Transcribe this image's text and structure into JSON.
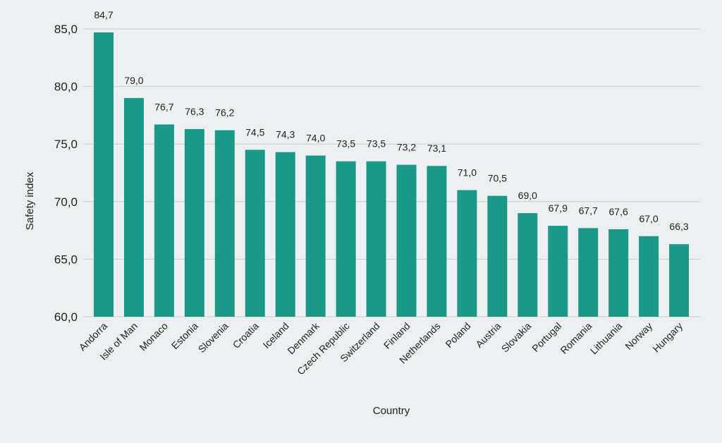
{
  "chart_data": {
    "type": "bar",
    "title": "",
    "xlabel": "Country",
    "ylabel": "Safety index",
    "ylim": [
      60,
      85
    ],
    "yticks": [
      "60,0",
      "65,0",
      "70,0",
      "75,0",
      "80,0",
      "85,0"
    ],
    "grid": true,
    "bar_color": "#1a9988",
    "categories": [
      "Andorra",
      "Isle of Man",
      "Monaco",
      "Estonia",
      "Slovenia",
      "Croatia",
      "Iceland",
      "Denmark",
      "Czech Republic",
      "Switzerland",
      "Finland",
      "Netherlands",
      "Poland",
      "Austria",
      "Slovakia",
      "Portugal",
      "Romania",
      "Lithuania",
      "Norway",
      "Hungary"
    ],
    "values": [
      84.7,
      79.0,
      76.7,
      76.3,
      76.2,
      74.5,
      74.3,
      74.0,
      73.5,
      73.5,
      73.2,
      73.1,
      71.0,
      70.5,
      69.0,
      67.9,
      67.7,
      67.6,
      67.0,
      66.3
    ],
    "data_labels": [
      "84,7",
      "79,0",
      "76,7",
      "76,3",
      "76,2",
      "74,5",
      "74,3",
      "74,0",
      "73,5",
      "73,5",
      "73,2",
      "73,1",
      "71,0",
      "70,5",
      "69,0",
      "67,9",
      "67,7",
      "67,6",
      "67,0",
      "66,3"
    ]
  }
}
